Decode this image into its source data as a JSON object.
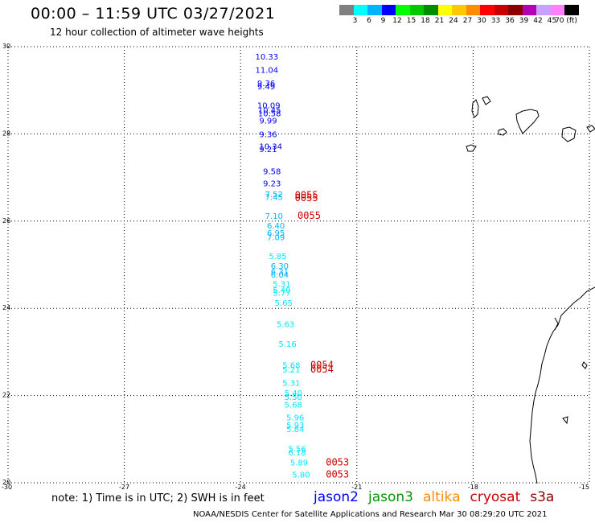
{
  "title": "00:00 – 11:59 UTC 03/27/2021",
  "subtitle": "12 hour collection of altimeter wave heights",
  "legend": {
    "colors": [
      "#808080",
      "#00ffff",
      "#00b4ff",
      "#0000ff",
      "#00ff00",
      "#00c800",
      "#008c00",
      "#ffff00",
      "#ffc800",
      "#ff8c00",
      "#ff0000",
      "#c80000",
      "#8c0000",
      "#b400b4",
      "#c8a0ff",
      "#ff80ff",
      "#000000"
    ],
    "labels": [
      "3",
      "6",
      "9",
      "12",
      "15",
      "18",
      "21",
      "24",
      "27",
      "30",
      "33",
      "36",
      "39",
      "42",
      "45",
      "70 (ft)"
    ]
  },
  "map": {
    "lon_range": [
      -30,
      -15
    ],
    "lat_range": [
      20,
      30
    ],
    "lat_labels": [
      "30",
      "28",
      "26",
      "24",
      "22",
      "20"
    ],
    "lon_labels": [
      "-30",
      "-27",
      "-24",
      "-21",
      "-18",
      "-15"
    ],
    "grid": "dotted",
    "observations": [
      {
        "value": "10.33",
        "lon": -23.62,
        "lat": 29.78,
        "color": "#0000ff"
      },
      {
        "value": "11.04",
        "lon": -23.62,
        "lat": 29.47,
        "color": "#0000ff"
      },
      {
        "value": "9.36",
        "lon": -23.57,
        "lat": 29.17,
        "color": "#0000ff"
      },
      {
        "value": "9.49",
        "lon": -23.57,
        "lat": 29.1,
        "color": "#0000ff"
      },
      {
        "value": "10.09",
        "lon": -23.57,
        "lat": 28.66,
        "color": "#0000ff"
      },
      {
        "value": "10.45",
        "lon": -23.55,
        "lat": 28.55,
        "color": "#0000ff"
      },
      {
        "value": "10.58",
        "lon": -23.55,
        "lat": 28.48,
        "color": "#0000ff"
      },
      {
        "value": "9.99",
        "lon": -23.52,
        "lat": 28.31,
        "color": "#0000ff"
      },
      {
        "value": "9.36",
        "lon": -23.52,
        "lat": 28.0,
        "color": "#0000ff"
      },
      {
        "value": "10.34",
        "lon": -23.52,
        "lat": 27.72,
        "color": "#0000ff"
      },
      {
        "value": "9.21",
        "lon": -23.52,
        "lat": 27.66,
        "color": "#0000ff"
      },
      {
        "value": "9.58",
        "lon": -23.42,
        "lat": 27.15,
        "color": "#0000ff"
      },
      {
        "value": "9.23",
        "lon": -23.42,
        "lat": 26.87,
        "color": "#0000ff"
      },
      {
        "value": "7.52",
        "lon": -23.37,
        "lat": 26.62,
        "color": "#00b4ff"
      },
      {
        "value": "7.45",
        "lon": -23.37,
        "lat": 26.56,
        "color": "#00b4ff"
      },
      {
        "value": "7.10",
        "lon": -23.37,
        "lat": 26.13,
        "color": "#00b4ff"
      },
      {
        "value": "6.40",
        "lon": -23.32,
        "lat": 25.9,
        "color": "#00b4ff"
      },
      {
        "value": "6.95",
        "lon": -23.32,
        "lat": 25.74,
        "color": "#00b4ff"
      },
      {
        "value": "7.09",
        "lon": -23.32,
        "lat": 25.64,
        "color": "#00b4ff"
      },
      {
        "value": "5.85",
        "lon": -23.27,
        "lat": 25.2,
        "color": "#00e6ff"
      },
      {
        "value": "6.30",
        "lon": -23.22,
        "lat": 24.98,
        "color": "#00b4ff"
      },
      {
        "value": "6.31",
        "lon": -23.22,
        "lat": 24.85,
        "color": "#00b4ff"
      },
      {
        "value": "6.04",
        "lon": -23.22,
        "lat": 24.78,
        "color": "#00b4ff"
      },
      {
        "value": "5.31",
        "lon": -23.17,
        "lat": 24.57,
        "color": "#00e6ff"
      },
      {
        "value": "5.40",
        "lon": -23.17,
        "lat": 24.43,
        "color": "#00e6ff"
      },
      {
        "value": "5.77",
        "lon": -23.17,
        "lat": 24.36,
        "color": "#00e6ff"
      },
      {
        "value": "5.65",
        "lon": -23.12,
        "lat": 24.13,
        "color": "#00e6ff"
      },
      {
        "value": "5.63",
        "lon": -23.07,
        "lat": 23.64,
        "color": "#00e6ff"
      },
      {
        "value": "5.16",
        "lon": -23.02,
        "lat": 23.19,
        "color": "#00e6ff"
      },
      {
        "value": "5.68",
        "lon": -22.92,
        "lat": 22.7,
        "color": "#00e6ff"
      },
      {
        "value": "5.21",
        "lon": -22.92,
        "lat": 22.6,
        "color": "#00e6ff"
      },
      {
        "value": "5.31",
        "lon": -22.92,
        "lat": 22.3,
        "color": "#00e6ff"
      },
      {
        "value": "5.40",
        "lon": -22.87,
        "lat": 22.07,
        "color": "#00e6ff"
      },
      {
        "value": "5.50",
        "lon": -22.87,
        "lat": 21.97,
        "color": "#00e6ff"
      },
      {
        "value": "5.68",
        "lon": -22.87,
        "lat": 21.8,
        "color": "#00e6ff"
      },
      {
        "value": "5.96",
        "lon": -22.82,
        "lat": 21.5,
        "color": "#00e6ff"
      },
      {
        "value": "5.93",
        "lon": -22.82,
        "lat": 21.33,
        "color": "#00e6ff"
      },
      {
        "value": "5.84",
        "lon": -22.82,
        "lat": 21.24,
        "color": "#00e6ff"
      },
      {
        "value": "5.56",
        "lon": -22.77,
        "lat": 20.78,
        "color": "#00e6ff"
      },
      {
        "value": "6.18",
        "lon": -22.77,
        "lat": 20.7,
        "color": "#00e6ff"
      },
      {
        "value": "5.89",
        "lon": -22.72,
        "lat": 20.47,
        "color": "#00e6ff"
      },
      {
        "value": "5.80",
        "lon": -22.67,
        "lat": 20.19,
        "color": "#00e6ff"
      }
    ],
    "passes": [
      {
        "label": "0055",
        "lon": -22.6,
        "lat": 26.6
      },
      {
        "label": "0055",
        "lon": -22.6,
        "lat": 26.53
      },
      {
        "label": "0055",
        "lon": -22.53,
        "lat": 26.13
      },
      {
        "label": "0054",
        "lon": -22.2,
        "lat": 22.7
      },
      {
        "label": "0054",
        "lon": -22.2,
        "lat": 22.6
      },
      {
        "label": "0053",
        "lon": -21.8,
        "lat": 20.47
      },
      {
        "label": "0053",
        "lon": -21.8,
        "lat": 20.19
      }
    ]
  },
  "note": "note: 1) Time is in UTC; 2) SWH is in feet",
  "satellites": [
    {
      "name": "jason2",
      "color": "#0000ff"
    },
    {
      "name": "jason3",
      "color": "#009600"
    },
    {
      "name": "altika",
      "color": "#ff8c00"
    },
    {
      "name": "cryosat",
      "color": "#c80000"
    },
    {
      "name": "s3a",
      "color": "#8c0000"
    }
  ],
  "credit": "NOAA/NESDIS Center for Satellite Applications and Research   Mar 30 08:29:20 UTC 2021"
}
